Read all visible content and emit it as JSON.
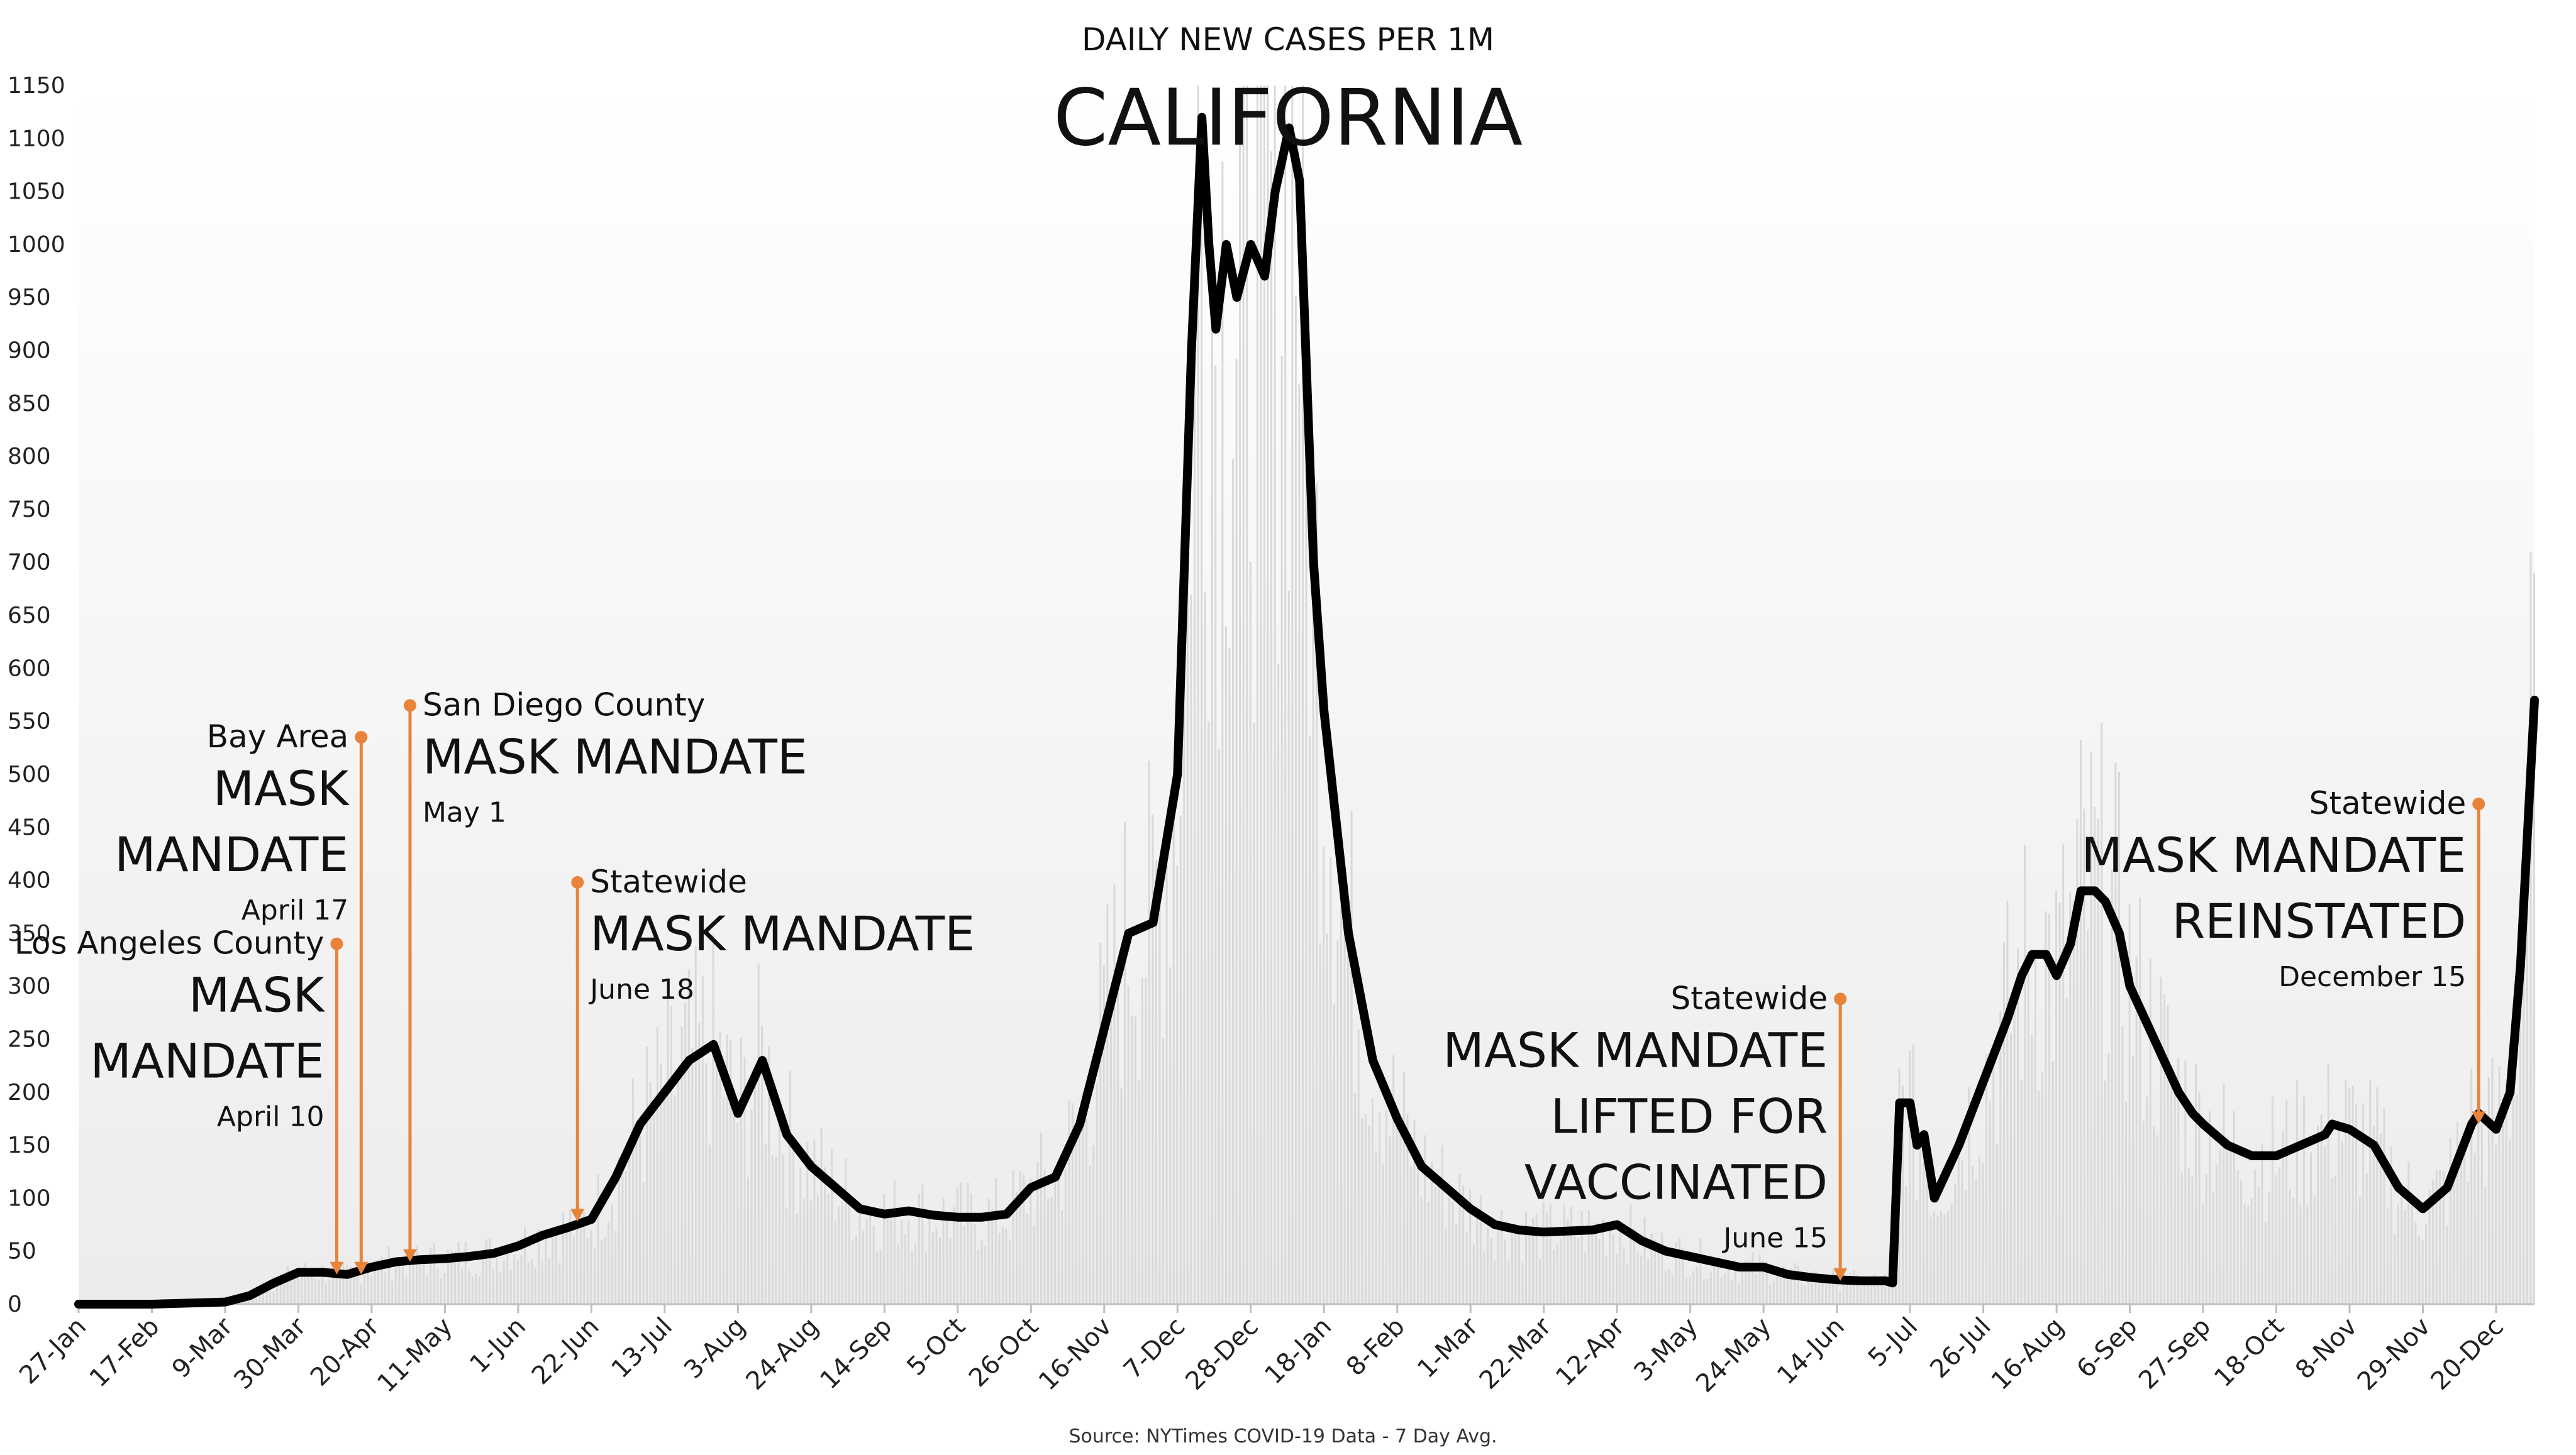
{
  "chart_data": {
    "type": "line",
    "title": "DAILY NEW CASES PER 1M",
    "subtitle": "CALIFORNIA",
    "source": "Source: NYTimes COVID-19 Data - 7 Day Avg.",
    "xlabel": "",
    "ylabel": "",
    "ylim": [
      0,
      1150
    ],
    "y_ticks": [
      0,
      50,
      100,
      150,
      200,
      250,
      300,
      350,
      400,
      450,
      500,
      550,
      600,
      650,
      700,
      750,
      800,
      850,
      900,
      950,
      1000,
      1050,
      1100,
      1150
    ],
    "x_ticks": [
      {
        "label": "27-Jan",
        "date": "2020-01-27"
      },
      {
        "label": "17-Feb",
        "date": "2020-02-17"
      },
      {
        "label": "9-Mar",
        "date": "2020-03-09"
      },
      {
        "label": "30-Mar",
        "date": "2020-03-30"
      },
      {
        "label": "20-Apr",
        "date": "2020-04-20"
      },
      {
        "label": "11-May",
        "date": "2020-05-11"
      },
      {
        "label": "1-Jun",
        "date": "2020-06-01"
      },
      {
        "label": "22-Jun",
        "date": "2020-06-22"
      },
      {
        "label": "13-Jul",
        "date": "2020-07-13"
      },
      {
        "label": "3-Aug",
        "date": "2020-08-03"
      },
      {
        "label": "24-Aug",
        "date": "2020-08-24"
      },
      {
        "label": "14-Sep",
        "date": "2020-09-14"
      },
      {
        "label": "5-Oct",
        "date": "2020-10-05"
      },
      {
        "label": "26-Oct",
        "date": "2020-10-26"
      },
      {
        "label": "16-Nov",
        "date": "2020-11-16"
      },
      {
        "label": "7-Dec",
        "date": "2020-12-07"
      },
      {
        "label": "28-Dec",
        "date": "2020-12-28"
      },
      {
        "label": "18-Jan",
        "date": "2021-01-18"
      },
      {
        "label": "8-Feb",
        "date": "2021-02-08"
      },
      {
        "label": "1-Mar",
        "date": "2021-03-01"
      },
      {
        "label": "22-Mar",
        "date": "2021-03-22"
      },
      {
        "label": "12-Apr",
        "date": "2021-04-12"
      },
      {
        "label": "3-May",
        "date": "2021-05-03"
      },
      {
        "label": "24-May",
        "date": "2021-05-24"
      },
      {
        "label": "14-Jun",
        "date": "2021-06-14"
      },
      {
        "label": "5-Jul",
        "date": "2021-07-05"
      },
      {
        "label": "26-Jul",
        "date": "2021-07-26"
      },
      {
        "label": "16-Aug",
        "date": "2021-08-16"
      },
      {
        "label": "6-Sep",
        "date": "2021-09-06"
      },
      {
        "label": "27-Sep",
        "date": "2021-09-27"
      },
      {
        "label": "18-Oct",
        "date": "2021-10-18"
      },
      {
        "label": "8-Nov",
        "date": "2021-11-08"
      },
      {
        "label": "29-Nov",
        "date": "2021-11-29"
      },
      {
        "label": "20-Dec",
        "date": "2021-12-20"
      }
    ],
    "grid": false,
    "legend": "none",
    "line_color": "#000000",
    "bar_color": "#d9d9d9",
    "annotation_color": "#e8833a",
    "series": [
      {
        "x": [
          "2020-01-27",
          "2020-02-17",
          "2020-03-09",
          "2020-03-16",
          "2020-03-23",
          "2020-03-30",
          "2020-04-06",
          "2020-04-13",
          "2020-04-20",
          "2020-04-27",
          "2020-05-04",
          "2020-05-11",
          "2020-05-18",
          "2020-05-25",
          "2020-06-01",
          "2020-06-08",
          "2020-06-15",
          "2020-06-22",
          "2020-06-29",
          "2020-07-06",
          "2020-07-13",
          "2020-07-20",
          "2020-07-27",
          "2020-08-03",
          "2020-08-10",
          "2020-08-17",
          "2020-08-24",
          "2020-08-31",
          "2020-09-07",
          "2020-09-14",
          "2020-09-21",
          "2020-09-28",
          "2020-10-05",
          "2020-10-12",
          "2020-10-19",
          "2020-10-26",
          "2020-11-02",
          "2020-11-09",
          "2020-11-16",
          "2020-11-23",
          "2020-11-30",
          "2020-12-07",
          "2020-12-11",
          "2020-12-14",
          "2020-12-16",
          "2020-12-18",
          "2020-12-21",
          "2020-12-24",
          "2020-12-28",
          "2021-01-01",
          "2021-01-04",
          "2021-01-08",
          "2021-01-11",
          "2021-01-15",
          "2021-01-18",
          "2021-01-25",
          "2021-02-01",
          "2021-02-08",
          "2021-02-15",
          "2021-02-22",
          "2021-03-01",
          "2021-03-08",
          "2021-03-15",
          "2021-03-22",
          "2021-04-05",
          "2021-04-12",
          "2021-04-19",
          "2021-04-26",
          "2021-05-03",
          "2021-05-10",
          "2021-05-17",
          "2021-05-24",
          "2021-05-31",
          "2021-06-07",
          "2021-06-14",
          "2021-06-21",
          "2021-06-28",
          "2021-06-30",
          "2021-07-02",
          "2021-07-05",
          "2021-07-07",
          "2021-07-09",
          "2021-07-12",
          "2021-07-19",
          "2021-07-26",
          "2021-08-02",
          "2021-08-06",
          "2021-08-09",
          "2021-08-13",
          "2021-08-16",
          "2021-08-20",
          "2021-08-23",
          "2021-08-27",
          "2021-08-30",
          "2021-09-03",
          "2021-09-06",
          "2021-09-13",
          "2021-09-20",
          "2021-09-24",
          "2021-09-27",
          "2021-10-04",
          "2021-10-11",
          "2021-10-18",
          "2021-10-25",
          "2021-11-01",
          "2021-11-03",
          "2021-11-08",
          "2021-11-15",
          "2021-11-22",
          "2021-11-29",
          "2021-12-06",
          "2021-12-13",
          "2021-12-15",
          "2021-12-20",
          "2021-12-24",
          "2021-12-27",
          "2021-12-31"
        ],
        "values": [
          0,
          0,
          2,
          8,
          20,
          30,
          30,
          28,
          35,
          40,
          42,
          43,
          45,
          48,
          55,
          65,
          72,
          80,
          120,
          170,
          200,
          230,
          245,
          180,
          230,
          160,
          130,
          110,
          90,
          85,
          88,
          84,
          82,
          82,
          85,
          110,
          120,
          170,
          260,
          350,
          360,
          500,
          900,
          1120,
          1000,
          920,
          1000,
          950,
          1000,
          970,
          1050,
          1110,
          1060,
          700,
          560,
          350,
          230,
          175,
          130,
          110,
          90,
          75,
          70,
          68,
          70,
          75,
          60,
          50,
          45,
          40,
          35,
          35,
          28,
          25,
          23,
          22,
          22,
          20,
          190,
          190,
          150,
          160,
          100,
          150,
          210,
          270,
          310,
          330,
          330,
          310,
          340,
          390,
          390,
          380,
          350,
          300,
          250,
          200,
          180,
          170,
          150,
          140,
          140,
          150,
          160,
          170,
          165,
          150,
          110,
          90,
          110,
          170,
          180,
          165,
          200,
          320,
          570
        ],
        "values_note": ""
      }
    ],
    "annotations": [
      {
        "kicker": "Los Angeles County",
        "headline": [
          "MASK",
          "MANDATE"
        ],
        "date_label": "April 10",
        "x": "2020-04-10",
        "y_top": 340,
        "y_end": 28,
        "align": "end"
      },
      {
        "kicker": "Bay Area",
        "headline": [
          "MASK",
          "MANDATE"
        ],
        "date_label": "April 17",
        "x": "2020-04-17",
        "y_top": 535,
        "y_end": 28,
        "align": "end"
      },
      {
        "kicker": "San Diego County",
        "headline": [
          "MASK MANDATE"
        ],
        "date_label": "May 1",
        "x": "2020-05-01",
        "y_top": 565,
        "y_end": 40,
        "align": "start"
      },
      {
        "kicker": "Statewide",
        "headline": [
          "MASK MANDATE"
        ],
        "date_label": "June 18",
        "x": "2020-06-18",
        "y_top": 398,
        "y_end": 78,
        "align": "start"
      },
      {
        "kicker": "Statewide",
        "headline": [
          "MASK MANDATE",
          "LIFTED FOR",
          "VACCINATED"
        ],
        "date_label": "June 15",
        "x": "2021-06-15",
        "y_top": 288,
        "y_end": 22,
        "align": "end"
      },
      {
        "kicker": "Statewide",
        "headline": [
          "MASK MANDATE",
          "REINSTATED"
        ],
        "date_label": "December 15",
        "x": "2021-12-15",
        "y_top": 472,
        "y_end": 170,
        "align": "end"
      }
    ]
  }
}
